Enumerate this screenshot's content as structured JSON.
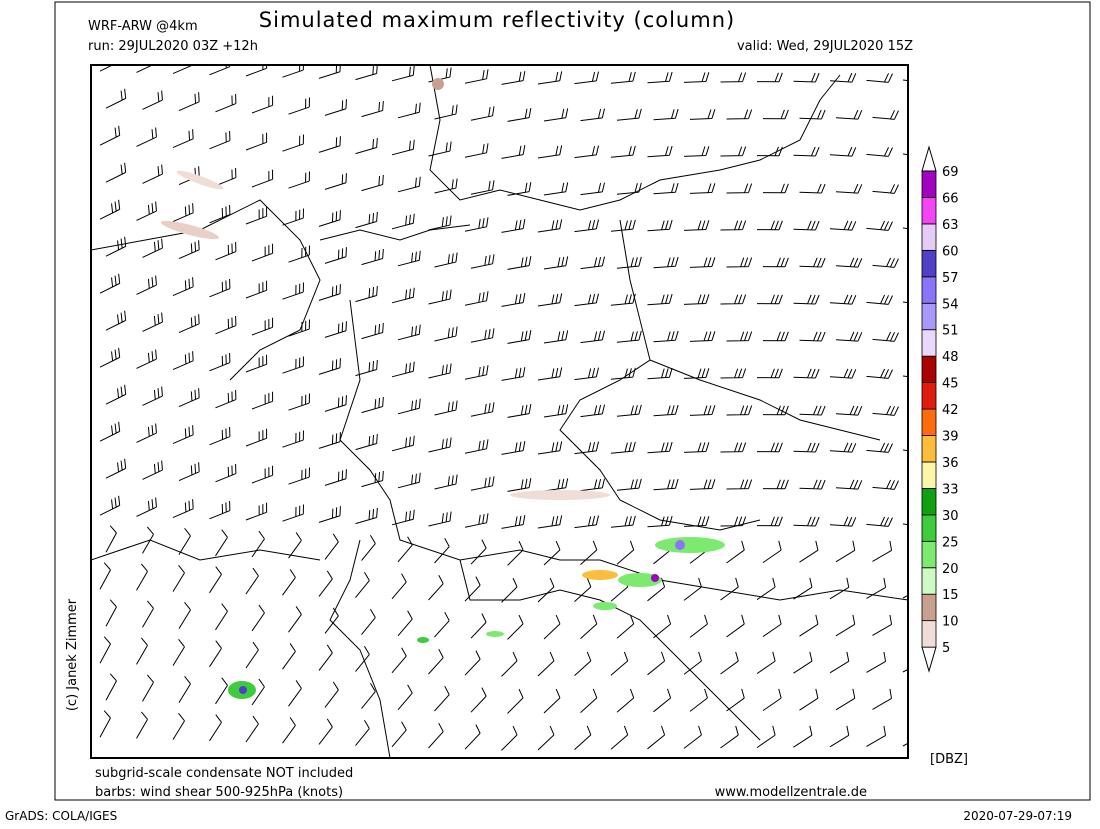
{
  "header": {
    "model": "WRF-ARW @4km",
    "title": "Simulated maximum reflectivity (column)",
    "run": "run: 29JUL2020 03Z +12h",
    "valid": "valid: Wed, 29JUL2020 15Z"
  },
  "credit": "(c) Janek Zimmer",
  "footer": {
    "note1": "subgrid-scale condensate NOT included",
    "note2": "barbs: wind shear 500-925hPa (knots)",
    "site": "www.modellzentrale.de",
    "software": "GrADS: COLA/IGES",
    "timestamp": "2020-07-29-07:19"
  },
  "colorbar": {
    "unit": "[DBZ]",
    "levels": [
      5,
      10,
      15,
      20,
      25,
      30,
      33,
      36,
      39,
      42,
      45,
      48,
      51,
      54,
      57,
      60,
      63,
      66,
      69
    ],
    "colors": [
      "#ffffff",
      "#f0ddd8",
      "#c8a092",
      "#cdfbc3",
      "#7bea6f",
      "#3ccc3c",
      "#10a010",
      "#fcf7a8",
      "#fcbc3c",
      "#fc6c0c",
      "#e01c0c",
      "#a80404",
      "#ead8fc",
      "#a898f8",
      "#8c74f8",
      "#5040c8",
      "#e4ccf4",
      "#f444f4",
      "#a004c0",
      "#ffffff"
    ]
  }
}
